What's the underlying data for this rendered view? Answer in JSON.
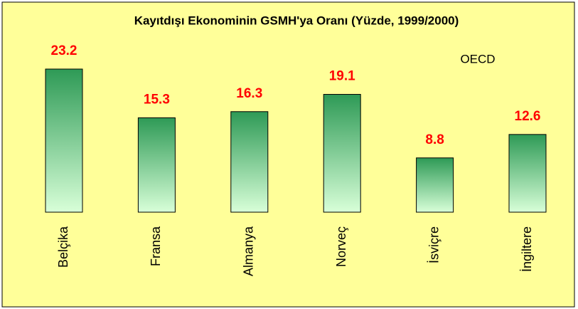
{
  "chart_data": {
    "type": "bar",
    "title": "Kayıtdışı Ekonominin GSMH'ya Oranı (Yüzde, 1999/2000)",
    "annotation": "OECD",
    "categories": [
      "Belçika",
      "Fransa",
      "Almanya",
      "Norveç",
      "İsviçre",
      "İngiltere"
    ],
    "values": [
      23.2,
      15.3,
      16.3,
      19.1,
      8.8,
      12.6
    ],
    "value_labels": [
      "23.2",
      "15.3",
      "16.3",
      "19.1",
      "8.8",
      "12.6"
    ],
    "color": "#2e9a56"
  }
}
